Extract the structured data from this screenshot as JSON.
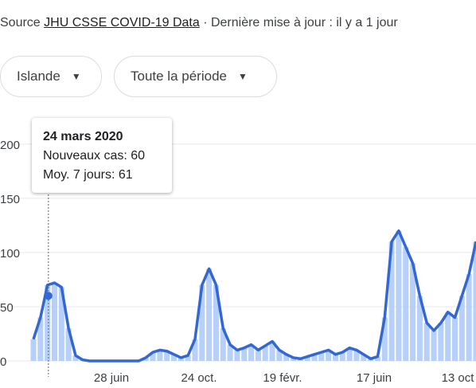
{
  "source": {
    "prefix": "Source ",
    "link": "JHU CSSE COVID-19 Data",
    "suffix": " · Dernière mise à jour : il y a 1 jour"
  },
  "filters": {
    "country": "Islande",
    "period": "Toute la période"
  },
  "tooltip": {
    "date": "24 mars 2020",
    "new_cases": "Nouveaux cas: 60",
    "avg7": "Moy. 7 jours: 61"
  },
  "colors": {
    "bars": "#aecbfa",
    "line": "#3367d6",
    "grid": "#e8eaed",
    "axis_text": "#3c4043"
  },
  "chart_data": {
    "type": "line",
    "ylim": [
      0,
      230
    ],
    "yticks": [
      "0",
      "50",
      "100",
      "150",
      "200"
    ],
    "xticks": [
      "28 juin",
      "24 oct.",
      "19 févr.",
      "17 juin",
      "13 oct"
    ],
    "series": [
      {
        "values": [
          20,
          40,
          70,
          72,
          68,
          30,
          5,
          1,
          0,
          0,
          0,
          0,
          0,
          0,
          0,
          0,
          3,
          8,
          10,
          9,
          6,
          3,
          5,
          20,
          70,
          85,
          70,
          30,
          15,
          10,
          12,
          15,
          10,
          14,
          18,
          10,
          6,
          3,
          2,
          4,
          6,
          8,
          10,
          6,
          8,
          12,
          10,
          6,
          2,
          4,
          40,
          110,
          120,
          105,
          90,
          60,
          35,
          28,
          35,
          45,
          40,
          60,
          80,
          110
        ]
      }
    ]
  }
}
